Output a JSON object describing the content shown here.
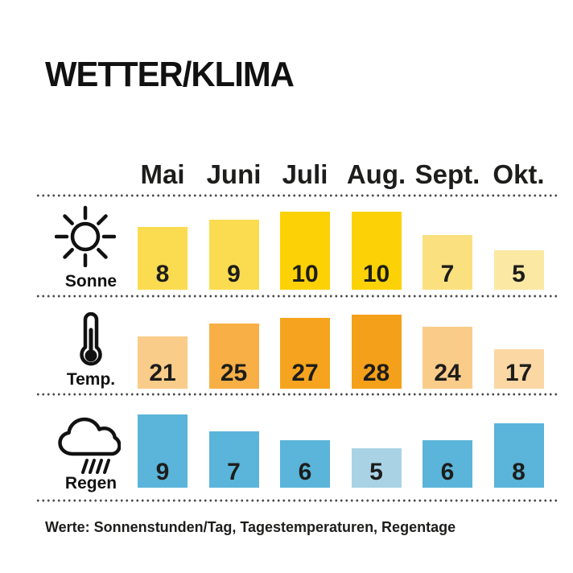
{
  "page": {
    "title": "WETTER/KLIMA",
    "footnote": "Werte: Sonnenstunden/Tag, Tagestemperaturen, Regentage",
    "background_color": "#ffffff",
    "separator_style": "dotted",
    "separator_color": "#4c4c4c",
    "text_color": "#1d1d1b"
  },
  "chart_data": {
    "type": "bar",
    "title": "WETTER/KLIMA",
    "categories": [
      "Mai",
      "Juni",
      "Juli",
      "Aug.",
      "Sept.",
      "Okt."
    ],
    "series": [
      {
        "name": "Sonne",
        "icon": "sun-icon",
        "unit": "Sonnenstunden/Tag",
        "values": [
          8,
          9,
          10,
          10,
          7,
          5
        ],
        "bar_colors": [
          "#FBDC50",
          "#FBDC50",
          "#FCD206",
          "#FCD206",
          "#FAE07F",
          "#FBE9A3"
        ]
      },
      {
        "name": "Temp.",
        "icon": "thermometer-icon",
        "unit": "Tagestemperaturen",
        "values": [
          21,
          25,
          27,
          28,
          24,
          17
        ],
        "bar_colors": [
          "#FACC8A",
          "#F8AF45",
          "#F6A41F",
          "#F5A01A",
          "#FACC8A",
          "#FBD7A4"
        ]
      },
      {
        "name": "Regen",
        "icon": "rain-cloud-icon",
        "unit": "Regentage",
        "values": [
          9,
          7,
          6,
          5,
          6,
          8
        ],
        "bar_colors": [
          "#5BB4D9",
          "#5BB4D9",
          "#5BB4D9",
          "#A9D3E5",
          "#5BB4D9",
          "#5BB4D9"
        ]
      }
    ],
    "value_label_color": "#1d1d1b",
    "xlabel": "",
    "ylabel": "",
    "legend_position": "none",
    "grid": "dotted-row-separators"
  }
}
